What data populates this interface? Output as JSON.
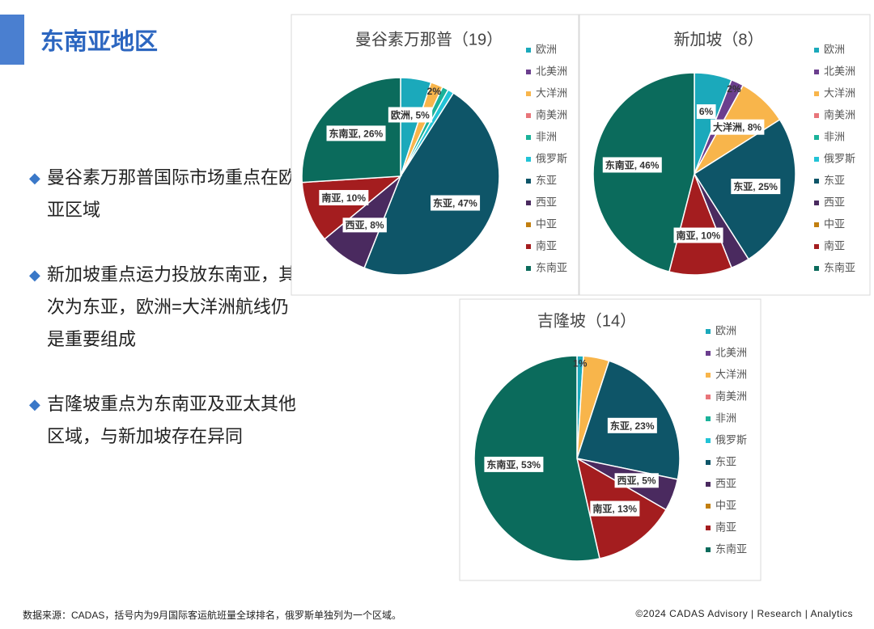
{
  "header": {
    "title": "东南亚地区"
  },
  "bullets": [
    "曼谷素万那普国际市场重点在欧亚区域",
    "新加坡重点运力投放东南亚，其次为东亚，欧洲=大洋洲航线仍是重要组成",
    "吉隆坡重点为东南亚及亚太其他区域，与新加坡存在异同"
  ],
  "footer": {
    "source": "数据来源：CADAS，括号内为9月国际客运航班量全球排名，俄罗斯单独列为一个区域。",
    "copyright": "©2024 CADAS Advisory | Research | Analytics"
  },
  "chart_data": [
    {
      "type": "pie",
      "title": "曼谷素万那普（19）",
      "categories": [
        "欧洲",
        "北美洲",
        "大洋洲",
        "南美洲",
        "非洲",
        "俄罗斯",
        "东亚",
        "西亚",
        "中亚",
        "南亚",
        "东南亚"
      ],
      "values": [
        5,
        0,
        2,
        0,
        1,
        1,
        47,
        8,
        0,
        10,
        26
      ],
      "value_labels": [
        "欧洲, 5%",
        null,
        "2%",
        null,
        null,
        null,
        "东亚, 47%",
        "西亚, 8%",
        null,
        "南亚, 10%",
        "东南亚, 26%"
      ],
      "colors": [
        "#1ba9bb",
        "#6b3e8e",
        "#f8b54b",
        "#e8757a",
        "#1bb29a",
        "#22c3d6",
        "#0e5568",
        "#4a2a5f",
        "#c27f10",
        "#a41d1f",
        "#0b6b5c"
      ]
    },
    {
      "type": "pie",
      "title": "新加坡（8）",
      "categories": [
        "欧洲",
        "北美洲",
        "大洋洲",
        "南美洲",
        "非洲",
        "俄罗斯",
        "东亚",
        "西亚",
        "中亚",
        "南亚",
        "东南亚"
      ],
      "values": [
        6,
        2,
        8,
        0,
        0,
        0,
        25,
        3,
        0,
        10,
        46
      ],
      "value_labels": [
        "6%",
        "2%",
        "大洋洲, 8%",
        null,
        null,
        null,
        "东亚, 25%",
        null,
        null,
        "南亚, 10%",
        "东南亚, 46%"
      ],
      "colors": [
        "#1ba9bb",
        "#6b3e8e",
        "#f8b54b",
        "#e8757a",
        "#1bb29a",
        "#22c3d6",
        "#0e5568",
        "#4a2a5f",
        "#c27f10",
        "#a41d1f",
        "#0b6b5c"
      ]
    },
    {
      "type": "pie",
      "title": "吉隆坡（14）",
      "categories": [
        "欧洲",
        "北美洲",
        "大洋洲",
        "南美洲",
        "非洲",
        "俄罗斯",
        "东亚",
        "西亚",
        "中亚",
        "南亚",
        "东南亚"
      ],
      "values": [
        1,
        0,
        4,
        0,
        0,
        0,
        23,
        5,
        0,
        13,
        53
      ],
      "value_labels": [
        "1%",
        null,
        null,
        null,
        null,
        null,
        "东亚, 23%",
        "西亚, 5%",
        null,
        "南亚, 13%",
        "东南亚, 53%"
      ],
      "colors": [
        "#1ba9bb",
        "#6b3e8e",
        "#f8b54b",
        "#e8757a",
        "#1bb29a",
        "#22c3d6",
        "#0e5568",
        "#4a2a5f",
        "#c27f10",
        "#a41d1f",
        "#0b6b5c"
      ]
    }
  ]
}
